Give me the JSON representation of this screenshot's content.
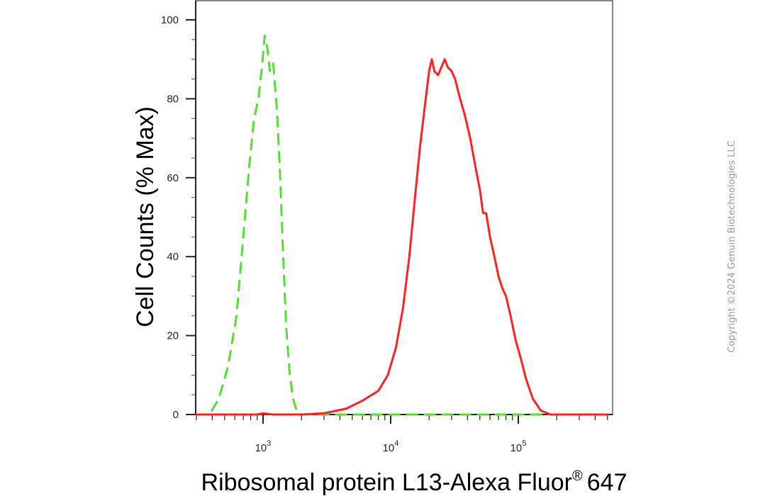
{
  "chart_data": {
    "type": "line",
    "xlabel": "Ribosomal protein L13-Alexa Fluor",
    "xlabel_superscript": "®",
    "xlabel_suffix": "647",
    "ylabel": "Cell Counts (% Max)",
    "x_scale": "log",
    "xlim": [
      300,
      500000
    ],
    "ylim": [
      0,
      105
    ],
    "x_tick_labels": [
      {
        "value": 1000,
        "base": "10",
        "exp": "3"
      },
      {
        "value": 10000,
        "base": "10",
        "exp": "4"
      },
      {
        "value": 100000,
        "base": "10",
        "exp": "5"
      }
    ],
    "y_tick_labels": [
      {
        "value": 0,
        "label": "0"
      },
      {
        "value": 20,
        "label": "20"
      },
      {
        "value": 40,
        "label": "40"
      },
      {
        "value": 60,
        "label": "60"
      },
      {
        "value": 80,
        "label": "80"
      },
      {
        "value": 100,
        "label": "100"
      }
    ],
    "grid": false,
    "series": [
      {
        "color": "#55dd33",
        "style": "dashed",
        "points": [
          [
            300,
            0
          ],
          [
            380,
            0
          ],
          [
            450,
            4
          ],
          [
            530,
            12
          ],
          [
            620,
            25
          ],
          [
            700,
            45
          ],
          [
            780,
            63
          ],
          [
            850,
            75
          ],
          [
            920,
            80
          ],
          [
            980,
            88
          ],
          [
            1030,
            96
          ],
          [
            1080,
            93
          ],
          [
            1130,
            87
          ],
          [
            1200,
            89
          ],
          [
            1280,
            78
          ],
          [
            1350,
            63
          ],
          [
            1430,
            42
          ],
          [
            1520,
            22
          ],
          [
            1620,
            10
          ],
          [
            1720,
            4
          ],
          [
            1850,
            0.5
          ],
          [
            2000,
            0
          ],
          [
            500000,
            0
          ]
        ]
      },
      {
        "color": "#ff2222",
        "style": "solid",
        "points": [
          [
            300,
            0
          ],
          [
            900,
            0
          ],
          [
            1000,
            0.3
          ],
          [
            1200,
            0
          ],
          [
            2000,
            0
          ],
          [
            3000,
            0.3
          ],
          [
            4500,
            1.5
          ],
          [
            6000,
            3.5
          ],
          [
            8000,
            6
          ],
          [
            9500,
            10
          ],
          [
            11000,
            17
          ],
          [
            12500,
            27
          ],
          [
            14000,
            40
          ],
          [
            15500,
            55
          ],
          [
            17000,
            68
          ],
          [
            18500,
            78
          ],
          [
            20000,
            87
          ],
          [
            21000,
            90
          ],
          [
            22000,
            87
          ],
          [
            23500,
            86
          ],
          [
            25000,
            88
          ],
          [
            26500,
            90
          ],
          [
            28000,
            88
          ],
          [
            30000,
            87
          ],
          [
            32000,
            85
          ],
          [
            35000,
            80
          ],
          [
            38000,
            76
          ],
          [
            42000,
            70
          ],
          [
            46000,
            63
          ],
          [
            50000,
            57
          ],
          [
            53000,
            51
          ],
          [
            56000,
            51
          ],
          [
            60000,
            45
          ],
          [
            65000,
            40
          ],
          [
            70000,
            35
          ],
          [
            75000,
            32
          ],
          [
            80000,
            30
          ],
          [
            87000,
            25
          ],
          [
            95000,
            19
          ],
          [
            105000,
            14
          ],
          [
            115000,
            9
          ],
          [
            130000,
            4
          ],
          [
            150000,
            1
          ],
          [
            180000,
            0
          ],
          [
            500000,
            0
          ]
        ]
      }
    ]
  },
  "copyright": "Copyright ©2024 Genuin Biotechnologies LLC"
}
